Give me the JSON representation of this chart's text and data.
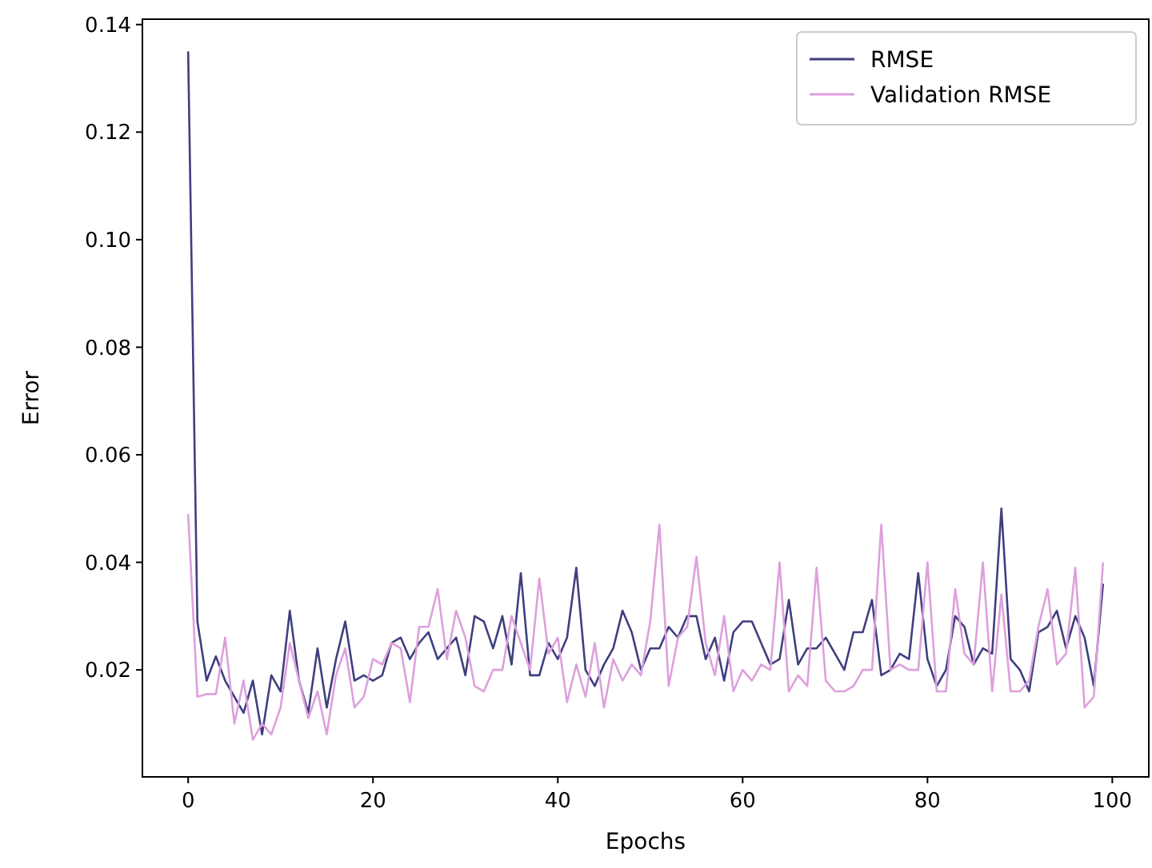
{
  "chart_data": {
    "type": "line",
    "xlabel": "Epochs",
    "ylabel": "Error",
    "x": [
      0,
      1,
      2,
      3,
      4,
      5,
      6,
      7,
      8,
      9,
      10,
      11,
      12,
      13,
      14,
      15,
      16,
      17,
      18,
      19,
      20,
      21,
      22,
      23,
      24,
      25,
      26,
      27,
      28,
      29,
      30,
      31,
      32,
      33,
      34,
      35,
      36,
      37,
      38,
      39,
      40,
      41,
      42,
      43,
      44,
      45,
      46,
      47,
      48,
      49,
      50,
      51,
      52,
      53,
      54,
      55,
      56,
      57,
      58,
      59,
      60,
      61,
      62,
      63,
      64,
      65,
      66,
      67,
      68,
      69,
      70,
      71,
      72,
      73,
      74,
      75,
      76,
      77,
      78,
      79,
      80,
      81,
      82,
      83,
      84,
      85,
      86,
      87,
      88,
      89,
      90,
      91,
      92,
      93,
      94,
      95,
      96,
      97,
      98,
      99
    ],
    "series": [
      {
        "name": "RMSE",
        "color": "#3f3f7f",
        "values": [
          0.135,
          0.029,
          0.018,
          0.0225,
          0.018,
          0.015,
          0.012,
          0.018,
          0.008,
          0.019,
          0.016,
          0.031,
          0.018,
          0.012,
          0.024,
          0.013,
          0.022,
          0.029,
          0.018,
          0.019,
          0.018,
          0.019,
          0.025,
          0.026,
          0.022,
          0.025,
          0.027,
          0.022,
          0.024,
          0.026,
          0.019,
          0.03,
          0.029,
          0.024,
          0.03,
          0.021,
          0.038,
          0.019,
          0.019,
          0.025,
          0.022,
          0.026,
          0.039,
          0.02,
          0.017,
          0.021,
          0.024,
          0.031,
          0.027,
          0.02,
          0.024,
          0.024,
          0.028,
          0.026,
          0.03,
          0.03,
          0.022,
          0.026,
          0.018,
          0.027,
          0.029,
          0.029,
          0.025,
          0.021,
          0.022,
          0.033,
          0.021,
          0.024,
          0.024,
          0.026,
          0.023,
          0.02,
          0.027,
          0.027,
          0.033,
          0.019,
          0.02,
          0.023,
          0.022,
          0.038,
          0.022,
          0.017,
          0.02,
          0.03,
          0.028,
          0.021,
          0.024,
          0.023,
          0.05,
          0.022,
          0.02,
          0.016,
          0.027,
          0.028,
          0.031,
          0.024,
          0.03,
          0.026,
          0.017,
          0.036
        ]
      },
      {
        "name": "Validation RMSE",
        "color": "#dda0dd",
        "values": [
          0.049,
          0.015,
          0.0155,
          0.0155,
          0.026,
          0.01,
          0.018,
          0.007,
          0.01,
          0.008,
          0.013,
          0.025,
          0.018,
          0.011,
          0.016,
          0.008,
          0.019,
          0.024,
          0.013,
          0.015,
          0.022,
          0.021,
          0.025,
          0.024,
          0.014,
          0.028,
          0.028,
          0.035,
          0.022,
          0.031,
          0.026,
          0.017,
          0.016,
          0.02,
          0.02,
          0.03,
          0.025,
          0.02,
          0.037,
          0.023,
          0.026,
          0.014,
          0.021,
          0.015,
          0.025,
          0.013,
          0.022,
          0.018,
          0.021,
          0.019,
          0.029,
          0.047,
          0.017,
          0.026,
          0.028,
          0.041,
          0.025,
          0.019,
          0.03,
          0.016,
          0.02,
          0.018,
          0.021,
          0.02,
          0.04,
          0.016,
          0.019,
          0.017,
          0.039,
          0.018,
          0.016,
          0.016,
          0.017,
          0.02,
          0.02,
          0.047,
          0.02,
          0.021,
          0.02,
          0.02,
          0.04,
          0.016,
          0.016,
          0.035,
          0.023,
          0.021,
          0.04,
          0.016,
          0.034,
          0.016,
          0.016,
          0.018,
          0.028,
          0.035,
          0.021,
          0.023,
          0.039,
          0.013,
          0.015,
          0.04
        ]
      }
    ],
    "xlim": [
      -4.95,
      103.95
    ],
    "xticks": [
      0,
      20,
      40,
      60,
      80,
      100
    ],
    "ylim": [
      0.0001,
      0.141
    ],
    "yticks": [
      {
        "value": 0.02,
        "label": "0.02"
      },
      {
        "value": 0.04,
        "label": "0.04"
      },
      {
        "value": 0.06,
        "label": "0.06"
      },
      {
        "value": 0.08,
        "label": "0.08"
      },
      {
        "value": 0.1,
        "label": "0.10"
      },
      {
        "value": 0.12,
        "label": "0.12"
      },
      {
        "value": 0.14,
        "label": "0.14"
      }
    ],
    "legend": "top right",
    "grid": false,
    "marker": "none",
    "line_style": "solid"
  }
}
